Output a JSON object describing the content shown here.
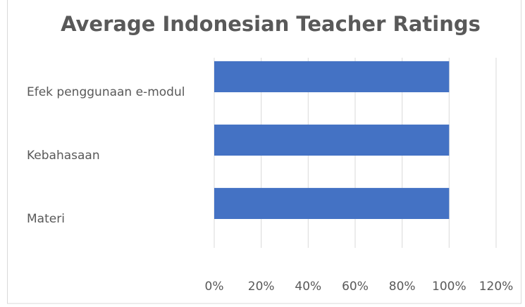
{
  "chart_data": {
    "type": "barh",
    "title": "Average Indonesian Teacher Ratings",
    "categories": [
      "Efek penggunaan e-modul",
      "Kebahasaan",
      "Materi"
    ],
    "values": [
      100,
      100,
      100
    ],
    "color": "#4472c4",
    "xlim": [
      0,
      120
    ],
    "xticks": [
      {
        "value": 0,
        "label": "0%"
      },
      {
        "value": 20,
        "label": "20%"
      },
      {
        "value": 40,
        "label": "40%"
      },
      {
        "value": 60,
        "label": "60%"
      },
      {
        "value": 80,
        "label": "80%"
      },
      {
        "value": 100,
        "label": "100%"
      },
      {
        "value": 120,
        "label": "120%"
      }
    ],
    "grid": true
  }
}
